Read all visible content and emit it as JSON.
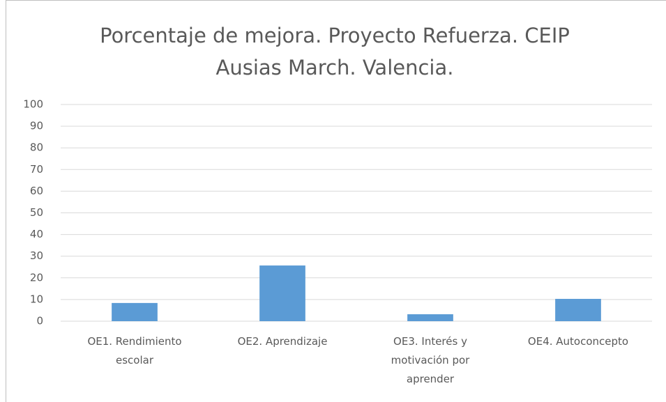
{
  "chart_data": {
    "type": "bar",
    "title": "Porcentaje de mejora. Proyecto Refuerza. CEIP Ausias March. Valencia.",
    "categories": [
      "OE1. Rendimiento escolar",
      "OE2. Aprendizaje",
      "OE3. Interés y motivación por aprender",
      "OE4. Autoconcepto"
    ],
    "values": [
      8.4,
      25.7,
      3.2,
      10.3
    ],
    "color": "#5b9bd5",
    "ylim": [
      0,
      100
    ],
    "yticks": [
      0,
      10,
      20,
      30,
      40,
      50,
      60,
      70,
      80,
      90,
      100
    ],
    "grid": true
  }
}
